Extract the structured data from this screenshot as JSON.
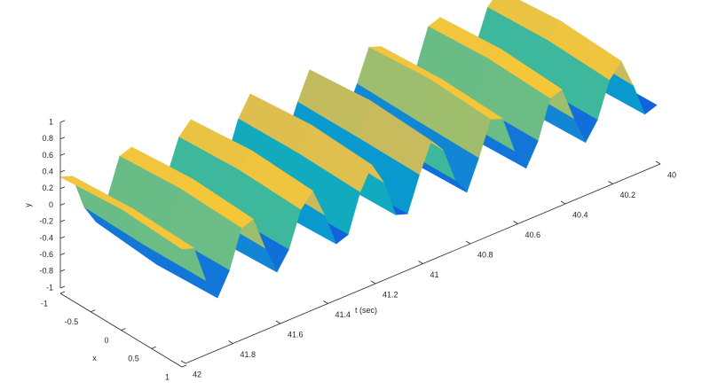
{
  "chart_data": {
    "type": "surface",
    "xlabel": "x",
    "ylabel": "y",
    "tlabel": "t (sec)",
    "x": [
      -1,
      0,
      1
    ],
    "t": [
      40,
      40.05,
      40.1,
      40.15,
      40.2,
      40.25,
      40.3,
      40.35,
      40.4,
      40.45,
      40.5,
      40.55,
      40.6,
      40.65,
      40.7,
      40.75,
      40.8,
      40.85,
      40.9,
      40.95,
      41,
      41.05,
      41.1,
      41.15,
      41.2,
      41.25,
      41.3,
      41.35,
      41.4,
      41.45,
      41.5,
      41.55,
      41.6,
      41.65,
      41.7,
      41.75,
      41.8,
      41.85,
      41.9,
      41.95,
      42
    ],
    "z": [
      [
        -0.29,
        -0.34,
        0.04,
        0.37,
        0.22,
        -0.18,
        -0.37,
        -0.05,
        0.34,
        0.29,
        -0.14,
        -0.38,
        -0.14,
        0.29,
        0.34,
        -0.04,
        -0.37,
        -0.18,
        0.22,
        0.37,
        0.04,
        -0.34,
        -0.29,
        0.14,
        0.38,
        0.14,
        -0.29,
        -0.34,
        0.04,
        0.37,
        0.22,
        -0.18,
        -0.37,
        -0.05,
        0.34,
        0.29,
        -0.14,
        -0.38,
        -0.14,
        0.29,
        0.34
      ],
      [
        -0.34,
        -0.4,
        0.05,
        0.44,
        0.26,
        -0.21,
        -0.44,
        -0.06,
        0.4,
        0.34,
        -0.16,
        -0.45,
        -0.16,
        0.34,
        0.4,
        -0.05,
        -0.44,
        -0.21,
        0.26,
        0.44,
        0.05,
        -0.4,
        -0.34,
        0.16,
        0.45,
        0.16,
        -0.34,
        -0.4,
        0.05,
        0.44,
        0.26,
        -0.21,
        -0.44,
        -0.06,
        0.4,
        0.34,
        -0.16,
        -0.45,
        -0.16,
        0.34,
        0.4
      ],
      [
        -0.31,
        -0.36,
        0.05,
        0.4,
        0.23,
        -0.19,
        -0.4,
        -0.05,
        0.36,
        0.31,
        -0.14,
        -0.41,
        -0.14,
        0.31,
        0.36,
        -0.05,
        -0.4,
        -0.19,
        0.23,
        0.4,
        0.05,
        -0.36,
        -0.31,
        0.14,
        0.41,
        0.14,
        -0.31,
        -0.36,
        0.05,
        0.4,
        0.23,
        -0.19,
        -0.4,
        -0.05,
        0.36,
        0.31,
        -0.14,
        -0.41,
        -0.14,
        0.31,
        0.36
      ]
    ],
    "xlim": [
      -1,
      1
    ],
    "ylim": [
      -1,
      1
    ],
    "tlim": [
      42,
      40
    ],
    "xticks": [
      -1,
      -0.5,
      0,
      0.5,
      1
    ],
    "yticks": [
      -1,
      -0.8,
      -0.6,
      -0.4,
      -0.2,
      0,
      0.2,
      0.4,
      0.6,
      0.8,
      1
    ],
    "tticks": [
      40,
      40.2,
      40.4,
      40.6,
      40.8,
      41,
      41.2,
      41.4,
      41.6,
      41.8,
      42
    ],
    "clim": [
      -0.5,
      0.5
    ],
    "colormap": [
      "#352a87",
      "#0f5cdd",
      "#1481d6",
      "#06a4ca",
      "#2eb7a4",
      "#87bf77",
      "#d1bb59",
      "#fec832",
      "#f9fb0e"
    ]
  }
}
